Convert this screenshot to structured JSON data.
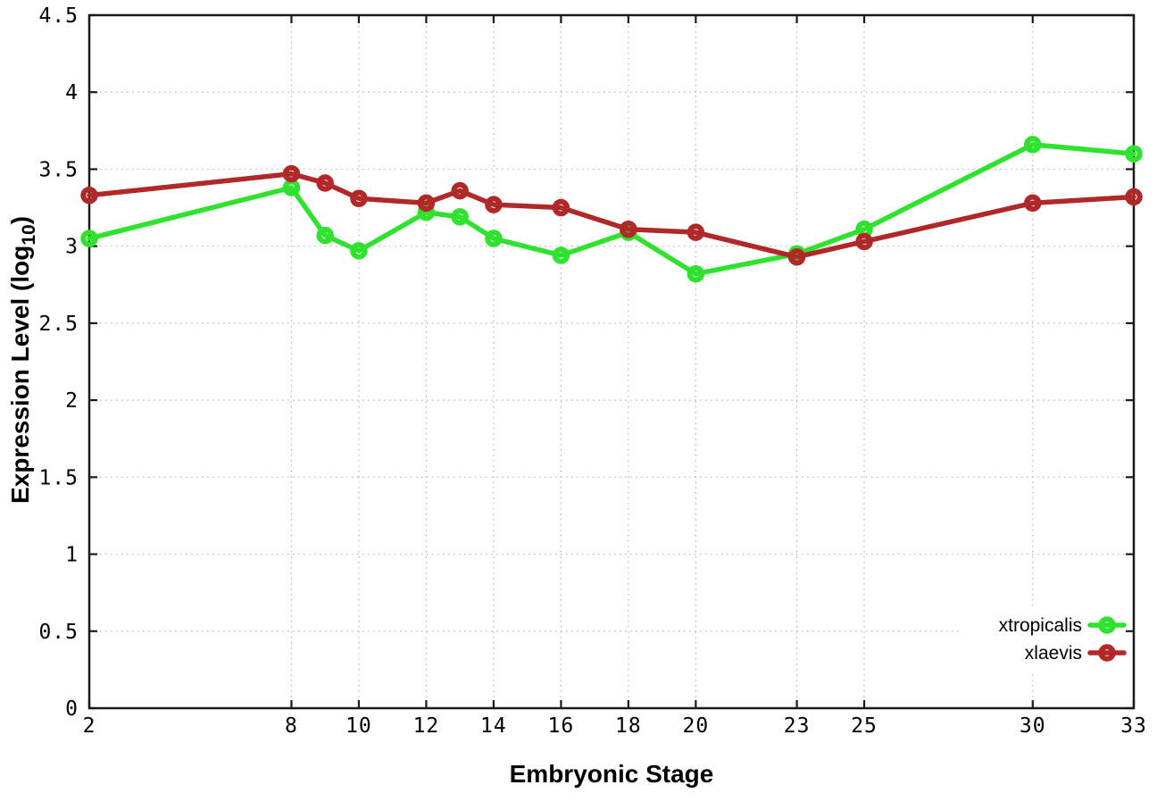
{
  "figure": {
    "background": "#ffffff",
    "border_color": "#1a1a1a",
    "grid_color": "#b3b3b3",
    "text_color": "#000000"
  },
  "chart_data": {
    "type": "line",
    "title": "",
    "xlabel": "Embryonic Stage",
    "ylabel": "Expression Level (log10)",
    "ylabel_parts": {
      "pre": "Expression Level (log",
      "sub": "10",
      "post": ")"
    },
    "x": [
      2,
      8,
      9,
      10,
      12,
      13,
      14,
      16,
      18,
      20,
      23,
      25,
      30,
      33
    ],
    "series": [
      {
        "name": "xtropicalis",
        "color": "#2ee22e",
        "values": [
          3.05,
          3.38,
          3.07,
          2.97,
          3.22,
          3.19,
          3.05,
          2.94,
          3.09,
          2.82,
          2.95,
          3.11,
          3.66,
          3.6
        ]
      },
      {
        "name": "xlaevis",
        "color": "#b02828",
        "values": [
          3.33,
          3.47,
          3.41,
          3.31,
          3.28,
          3.36,
          3.27,
          3.25,
          3.11,
          3.09,
          2.93,
          3.03,
          3.28,
          3.32
        ]
      }
    ],
    "xlim": [
      2,
      33
    ],
    "ylim": [
      0,
      4.5
    ],
    "x_ticks": [
      2,
      8,
      10,
      12,
      14,
      16,
      18,
      20,
      23,
      25,
      30,
      33
    ],
    "y_ticks": [
      0,
      0.5,
      1,
      1.5,
      2,
      2.5,
      3,
      3.5,
      4,
      4.5
    ],
    "grid": "dotted",
    "marker": "open-circle",
    "legend": {
      "position": "inside-bottom-right",
      "entries": [
        "xtropicalis",
        "xlaevis"
      ]
    }
  }
}
